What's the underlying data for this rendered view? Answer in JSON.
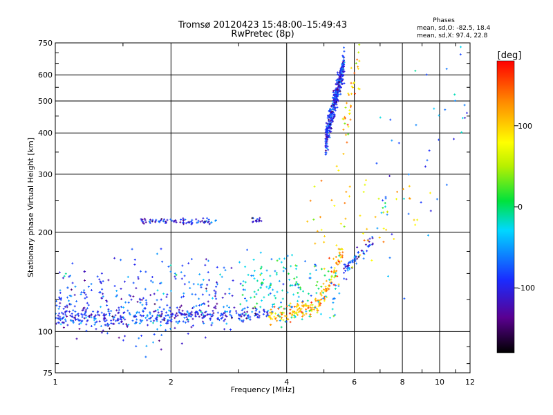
{
  "chart_data": {
    "type": "scatter",
    "title": "Tromsø 20120423 15:48:00–15:49:43",
    "subtitle": "RwPretec (8p)",
    "xlabel": "Frequency [MHz]",
    "ylabel": "Stationary phase Virtual Height [km]",
    "x_scale": "log",
    "y_scale": "log",
    "xlim": [
      1,
      12
    ],
    "ylim": [
      75,
      750
    ],
    "x_ticks": [
      1,
      2,
      4,
      6,
      8,
      10,
      12
    ],
    "y_ticks": [
      75,
      100,
      200,
      300,
      400,
      500,
      600,
      750
    ],
    "grid": true,
    "phases_box": {
      "heading": "Phases",
      "line1": "mean, sd,O:  -82.5, 18.4",
      "line2": "mean, sd,X:  97.4, 22.8"
    },
    "colorbar": {
      "label": "[deg]",
      "min": -180,
      "max": 180,
      "ticks": [
        100,
        0,
        -100
      ]
    },
    "clusters": [
      {
        "x_range": [
          1.0,
          3.6
        ],
        "y_start": 110,
        "y_end": 113,
        "phase": -95,
        "count": 340,
        "spread": 0.03
      },
      {
        "x_range": [
          3.6,
          4.85
        ],
        "y_start": 111,
        "y_end": 120,
        "phase": 110,
        "count": 120,
        "spread": 0.025
      },
      {
        "x_range": [
          4.85,
          5.6
        ],
        "y_start": 120,
        "y_end": 175,
        "phase": 110,
        "count": 70,
        "spread": 0.04
      },
      {
        "x_range": [
          5.6,
          6.7
        ],
        "y_start": 150,
        "y_end": 190,
        "phase": -90,
        "count": 60,
        "spread": 0.03
      },
      {
        "x_range": [
          1.0,
          2.9
        ],
        "y_start": 125,
        "y_end": 125,
        "phase": -85,
        "count": 320,
        "spread": 0.14
      },
      {
        "x_range": [
          3.0,
          5.5
        ],
        "y_start": 135,
        "y_end": 135,
        "phase": -20,
        "count": 170,
        "spread": 0.12
      },
      {
        "x_range": [
          1.65,
          2.65
        ],
        "y_start": 216,
        "y_end": 216,
        "phase": -100,
        "count": 80,
        "spread": 0.01
      },
      {
        "x_range": [
          3.25,
          3.45
        ],
        "y_start": 218,
        "y_end": 218,
        "phase": -110,
        "count": 14,
        "spread": 0.01
      },
      {
        "x_range": [
          5.05,
          5.65
        ],
        "y_start": 380,
        "y_end": 650,
        "phase": -95,
        "count": 380,
        "spread": 0.05
      },
      {
        "x_range": [
          5.6,
          6.2
        ],
        "y_start": 400,
        "y_end": 650,
        "phase": 105,
        "count": 40,
        "spread": 0.1
      },
      {
        "x_range": [
          4.5,
          9.5
        ],
        "y_start": 200,
        "y_end": 250,
        "phase": 100,
        "count": 60,
        "spread": 0.18
      },
      {
        "x_range": [
          6.8,
          12.0
        ],
        "y_start": 240,
        "y_end": 600,
        "phase": -60,
        "count": 50,
        "spread": 0.35
      }
    ]
  }
}
